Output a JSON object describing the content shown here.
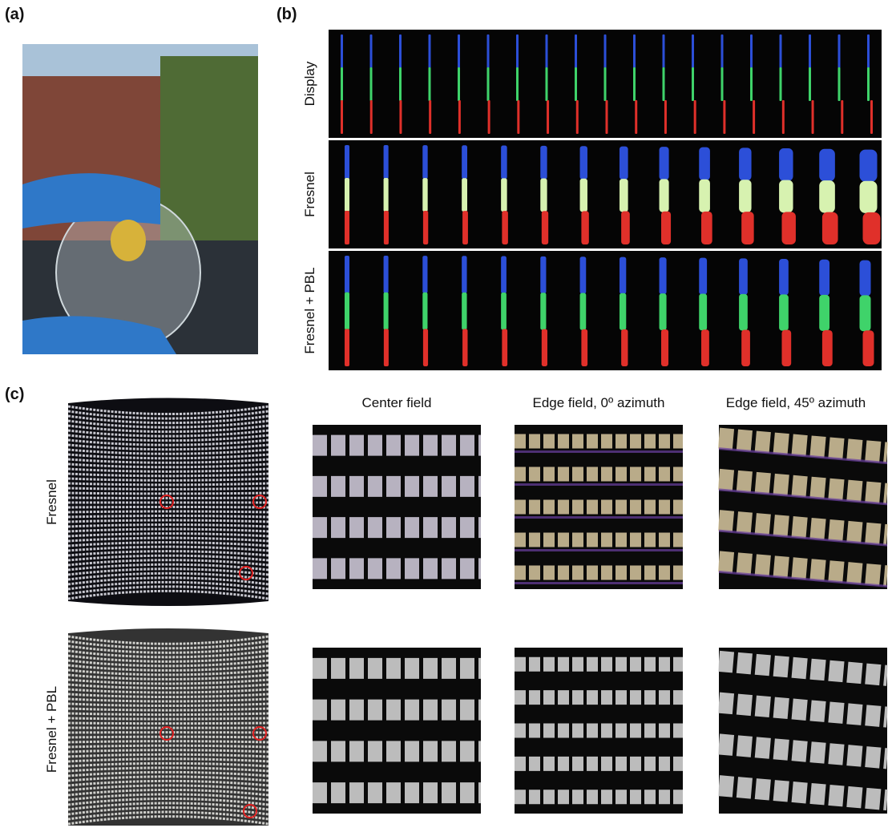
{
  "panels": {
    "a": {
      "label": "(a)"
    },
    "b": {
      "label": "(b)",
      "rows": [
        "Display",
        "Fresnel",
        "Fresnel + PBL"
      ]
    },
    "c": {
      "label": "(c)",
      "columns": [
        "Center field",
        "Edge field, 0º azimuth",
        "Edge field, 45º azimuth"
      ],
      "rows": [
        "Fresnel",
        "Fresnel + PBL"
      ]
    }
  }
}
